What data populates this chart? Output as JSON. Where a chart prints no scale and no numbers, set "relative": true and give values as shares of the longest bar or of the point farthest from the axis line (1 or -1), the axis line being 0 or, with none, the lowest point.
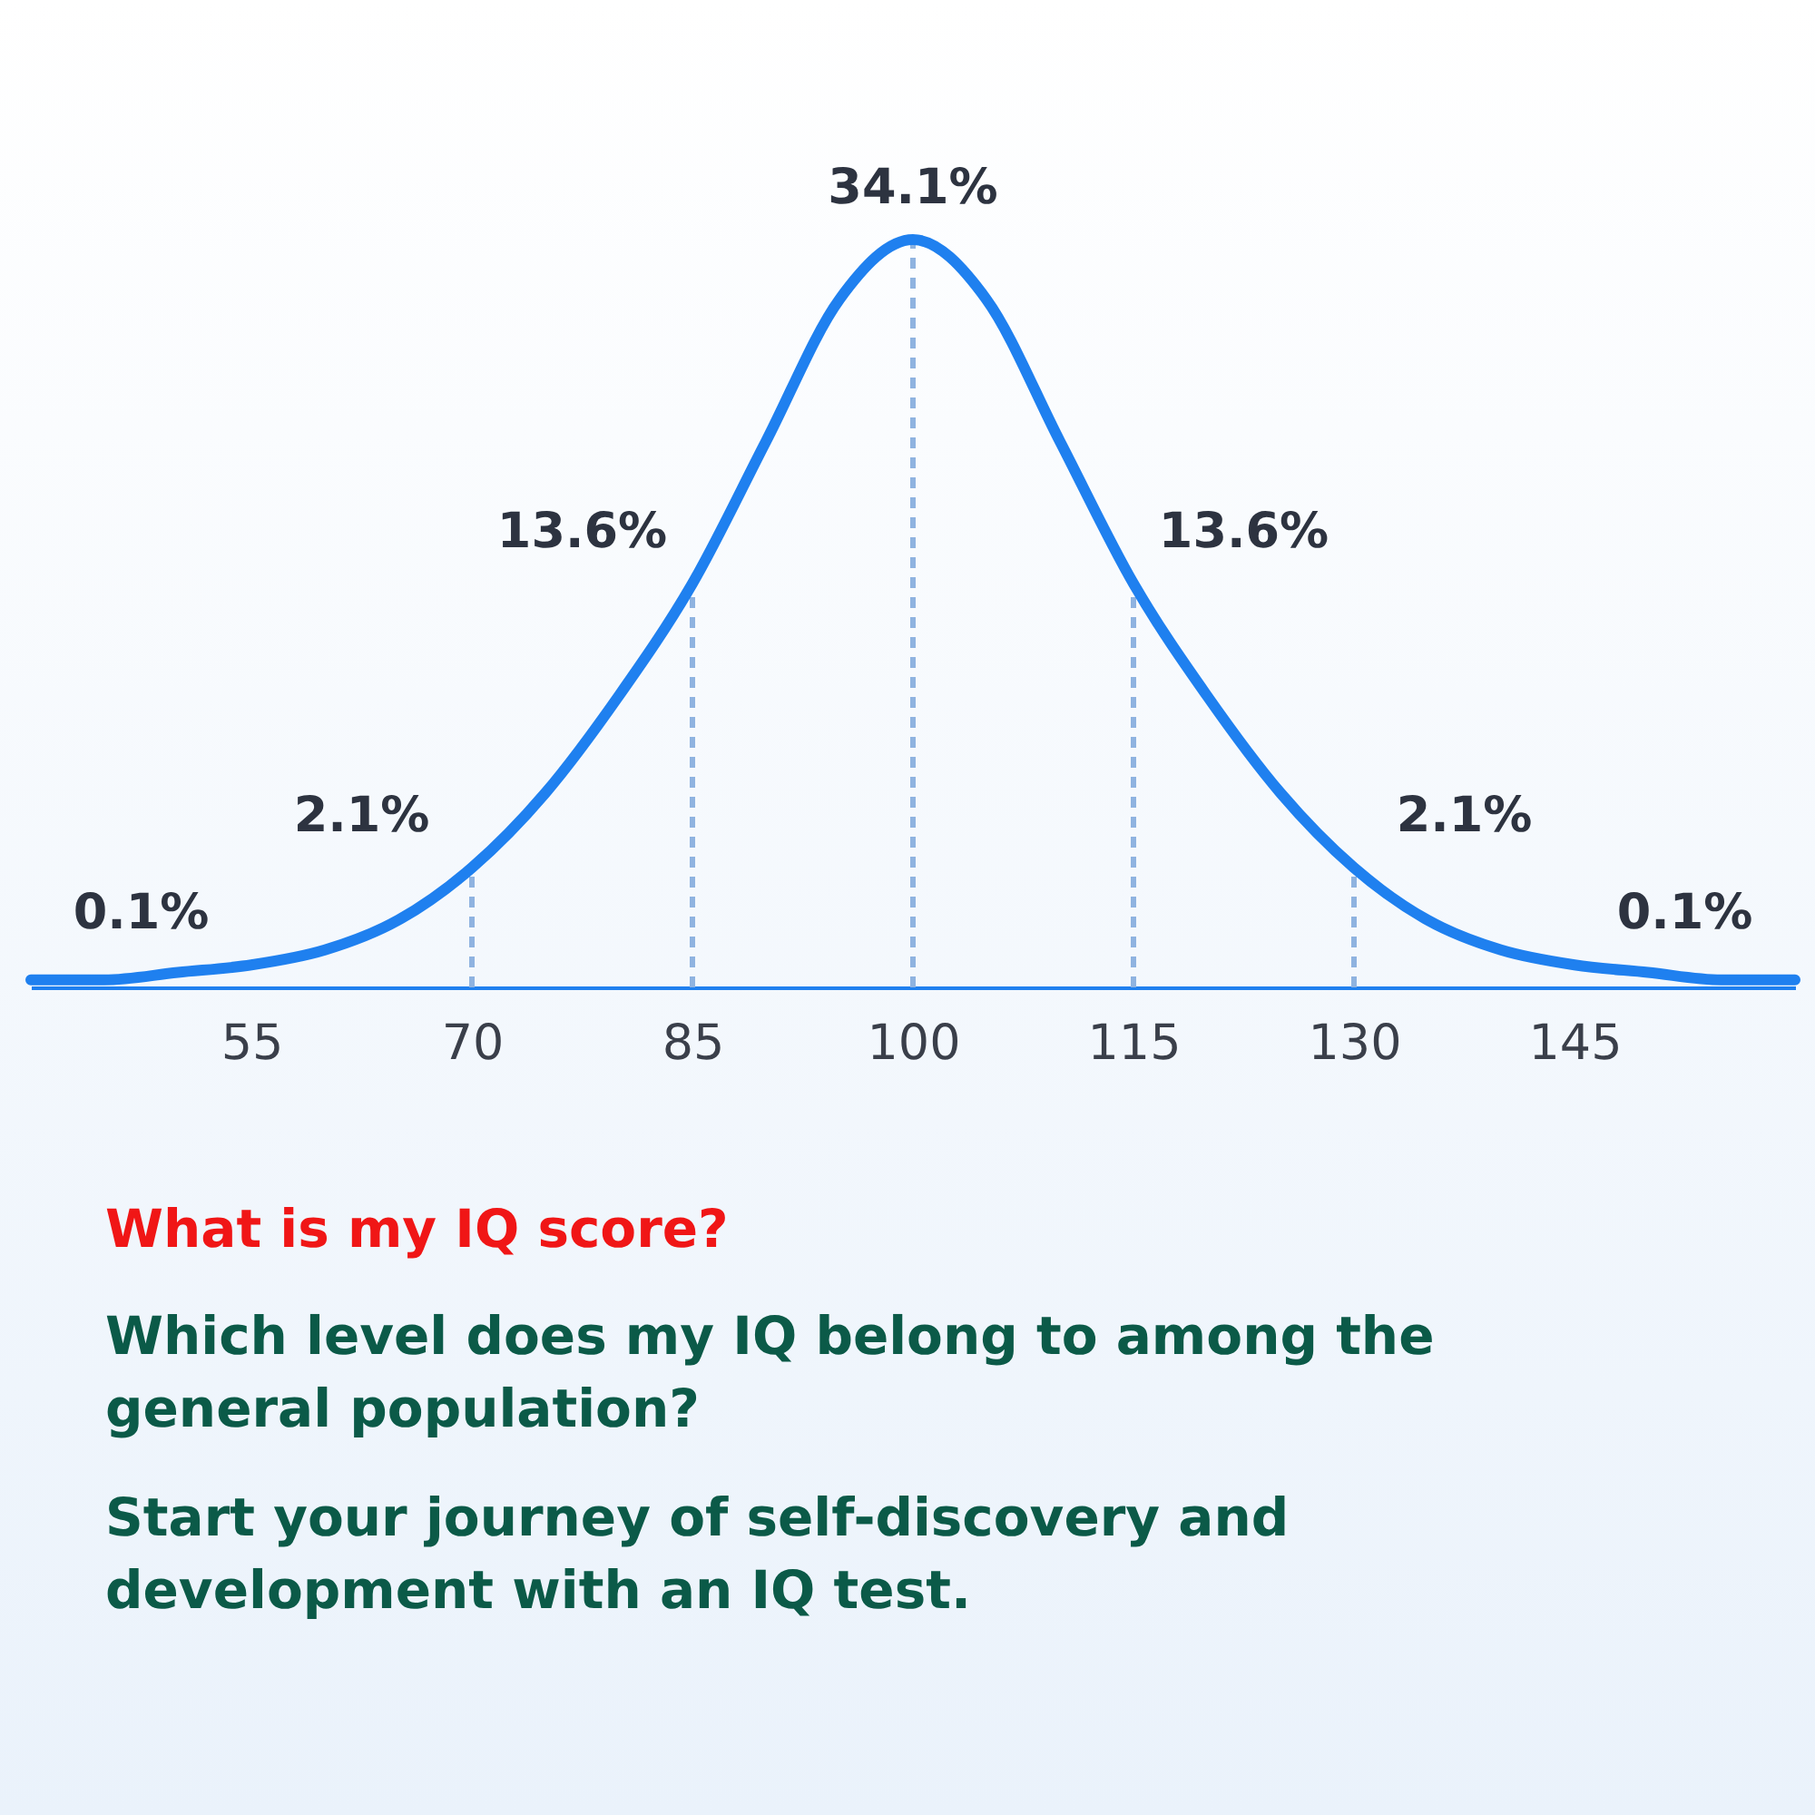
{
  "chart_data": {
    "type": "line",
    "relative": true,
    "title": "What is my IQ score?",
    "x": [
      40,
      45,
      50,
      55,
      60,
      65,
      70,
      75,
      80,
      85,
      90,
      95,
      100,
      105,
      110,
      115,
      120,
      125,
      130,
      135,
      140,
      145,
      150,
      155,
      160
    ],
    "series": [
      {
        "color": "#1f80ef",
        "values": [
          0.01,
          0.01,
          0.02,
          0.03,
          0.05,
          0.09,
          0.16,
          0.26,
          0.39,
          0.54,
          0.73,
          0.92,
          1,
          0.92,
          0.73,
          0.54,
          0.39,
          0.26,
          0.16,
          0.09,
          0.05,
          0.03,
          0.02,
          0.01,
          0.01
        ]
      }
    ],
    "xlim": [
      40,
      160
    ],
    "xticks": [
      55,
      70,
      85,
      100,
      115,
      130,
      145
    ],
    "grid": false,
    "marker": "none",
    "line_style": "solid",
    "ref_lines": [
      {
        "axis": "x",
        "value": 70,
        "color": "#8fb3e0",
        "line_style": "dashed"
      },
      {
        "axis": "x",
        "value": 85,
        "color": "#8fb3e0",
        "line_style": "dashed"
      },
      {
        "axis": "x",
        "value": 100,
        "color": "#8fb3e0",
        "line_style": "dashed"
      },
      {
        "axis": "x",
        "value": 115,
        "color": "#8fb3e0",
        "line_style": "dashed"
      },
      {
        "axis": "x",
        "value": 130,
        "color": "#8fb3e0",
        "line_style": "dashed"
      }
    ],
    "annotations": [
      "0.1%",
      "2.1%",
      "13.6%",
      "34.1%",
      "13.6%",
      "2.1%",
      "0.1%",
      "Which level does my IQ belong to among the general population?",
      "Start your journey of self-discovery and development with an IQ test."
    ]
  }
}
